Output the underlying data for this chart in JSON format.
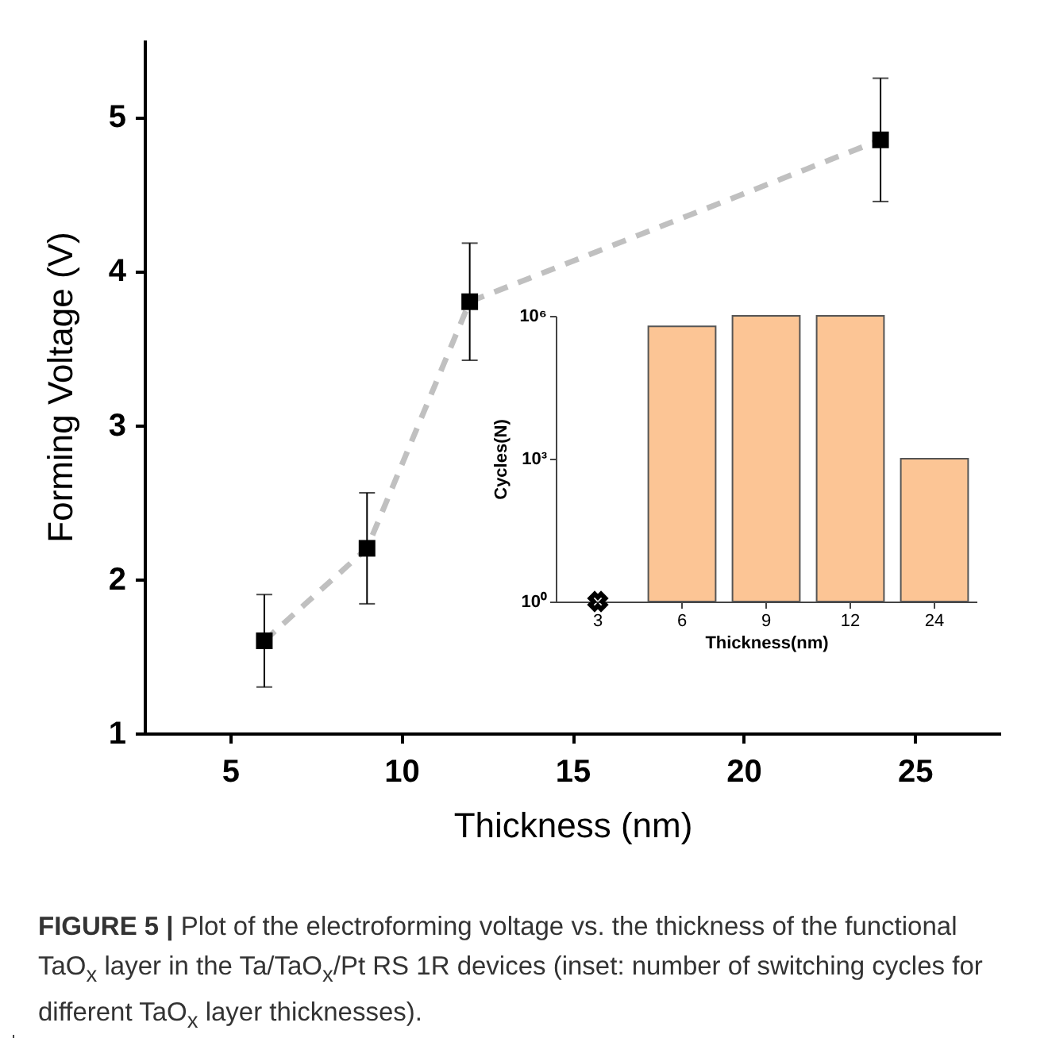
{
  "chart_data": [
    {
      "type": "scatter",
      "xlabel": "Thickness (nm)",
      "ylabel": "Forming Voltage (V)",
      "x": [
        6,
        9,
        12,
        24
      ],
      "series": [
        {
          "type": "line",
          "color": "#c0c0c0",
          "values": [
            1.6,
            2.2,
            3.8,
            4.85
          ],
          "line_style": "dashed",
          "marker": "none"
        },
        {
          "type": "scatter",
          "color": "#000000",
          "values": [
            1.6,
            2.2,
            3.8,
            4.85
          ],
          "errors": [
            0.3,
            0.36,
            0.38,
            0.4
          ],
          "marker": "square"
        }
      ],
      "xlim": [
        2.5,
        27.5
      ],
      "xticks": [
        5,
        10,
        15,
        20,
        25
      ],
      "ylim": [
        1,
        5.5
      ],
      "yticks": [
        1,
        2,
        3,
        4,
        5
      ],
      "annotations": [
        "FIGURE 5 |",
        "Plot of the electroforming voltage vs. the thickness of the functional TaO$_{x}$ layer in the Ta/TaO$_{x}$/Pt RS 1R devices (inset: number of switching cycles for different TaO$_{x}$ layer thicknesses)."
      ]
    },
    {
      "type": "bar",
      "xlabel": "Thickness(nm)",
      "ylabel": "Cycles(N)",
      "categories": [
        "3",
        "6",
        "9",
        "12",
        "24"
      ],
      "series": [
        {
          "type": "bar",
          "color": "#fcc595",
          "values": [
            null,
            600000,
            1000000,
            1000000,
            1000
          ]
        },
        {
          "type": "scatter",
          "color": "#000000",
          "marker": "cross",
          "values": [
            1,
            null,
            null,
            null,
            null
          ]
        }
      ],
      "log": "y",
      "ylim": [
        1,
        1000000
      ],
      "yticks": [
        {
          "value": 1,
          "label": "10⁰"
        },
        {
          "value": 1000,
          "label": "10³"
        },
        {
          "value": 1000000,
          "label": "10⁶"
        }
      ]
    }
  ]
}
